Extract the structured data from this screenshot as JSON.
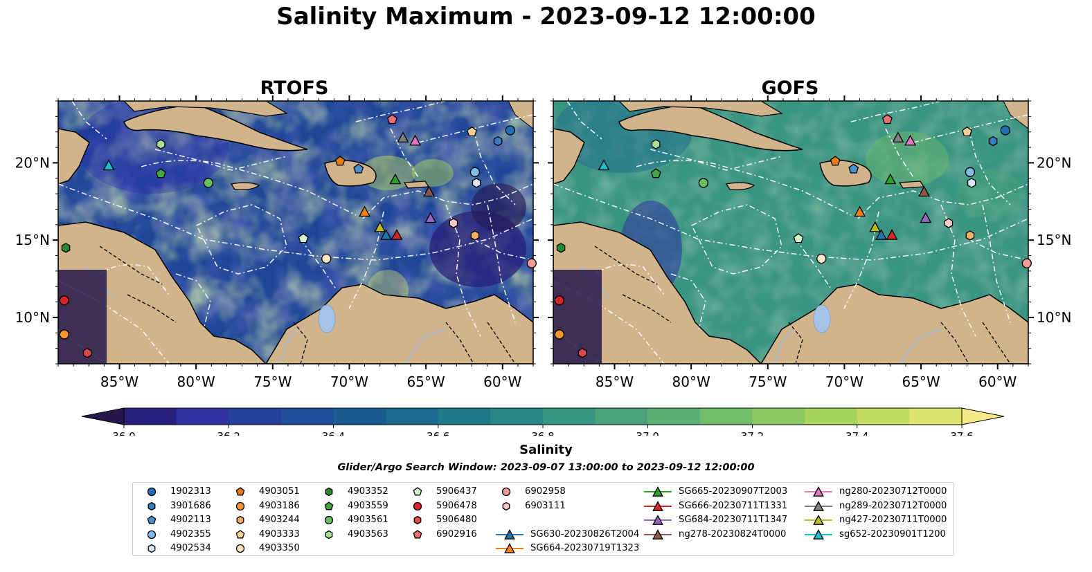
{
  "figure": {
    "title": "Salinity Maximum - 2023-09-12 12:00:00",
    "panels": [
      "RTOFS",
      "GOFS"
    ],
    "lon_ticks": [
      "85°W",
      "80°W",
      "75°W",
      "70°W",
      "65°W",
      "60°W"
    ],
    "lat_ticks": [
      "20°N",
      "15°N",
      "10°N"
    ],
    "search_window": "Glider/Argo Search Window: 2023-09-07 13:00:00 to 2023-09-12 12:00:00"
  },
  "colorbar": {
    "label": "Salinity",
    "ticks": [
      "36.0",
      "36.2",
      "36.4",
      "36.6",
      "36.8",
      "37.0",
      "37.2",
      "37.4",
      "37.6"
    ],
    "colormap": [
      "#24184c",
      "#28207a",
      "#2e32a0",
      "#263f9c",
      "#1f4e96",
      "#1b5c90",
      "#1b6a8d",
      "#22788a",
      "#2c8787",
      "#3a9482",
      "#4aa27b",
      "#5db073",
      "#72bd6a",
      "#8bc862",
      "#a6d35c",
      "#c3dd60",
      "#dee56e",
      "#f4eb86"
    ]
  },
  "legend": {
    "argo": [
      {
        "label": "1902313",
        "marker": "circle",
        "color": "#2070b4"
      },
      {
        "label": "3901686",
        "marker": "hexagon",
        "color": "#3a7cc2"
      },
      {
        "label": "4902113",
        "marker": "pentagon",
        "color": "#4a90d0"
      },
      {
        "label": "4902355",
        "marker": "circle",
        "color": "#84b8e8"
      },
      {
        "label": "4902534",
        "marker": "hexagon",
        "color": "#d7e8f9"
      },
      {
        "label": "4903051",
        "marker": "pentagon",
        "color": "#e87a12"
      },
      {
        "label": "4903186",
        "marker": "circle",
        "color": "#f5952c"
      },
      {
        "label": "4903244",
        "marker": "hexagon",
        "color": "#f7b066"
      },
      {
        "label": "4903333",
        "marker": "pentagon",
        "color": "#fbd09a"
      },
      {
        "label": "4903350",
        "marker": "circle",
        "color": "#fde6c8"
      },
      {
        "label": "4903352",
        "marker": "hexagon",
        "color": "#2a8a2a"
      },
      {
        "label": "4903559",
        "marker": "pentagon",
        "color": "#44a642"
      },
      {
        "label": "4903561",
        "marker": "circle",
        "color": "#66c060"
      },
      {
        "label": "4903563",
        "marker": "hexagon",
        "color": "#a8e09a"
      },
      {
        "label": "5906437",
        "marker": "pentagon",
        "color": "#d4f4cc"
      },
      {
        "label": "5906478",
        "marker": "circle",
        "color": "#d7262a"
      },
      {
        "label": "5906480",
        "marker": "hexagon",
        "color": "#e0474a"
      },
      {
        "label": "6902916",
        "marker": "pentagon",
        "color": "#ec7072"
      },
      {
        "label": "6902958",
        "marker": "circle",
        "color": "#f59a98"
      },
      {
        "label": "6903111",
        "marker": "hexagon",
        "color": "#fbc8c6"
      }
    ],
    "gliders": [
      {
        "label": "SG630-20230826T2004",
        "color": "#1f77b4"
      },
      {
        "label": "SG664-20230719T1323",
        "color": "#ff7f0e"
      },
      {
        "label": "SG665-20230907T2003",
        "color": "#2ca02c"
      },
      {
        "label": "SG666-20230711T1331",
        "color": "#d62728"
      },
      {
        "label": "SG684-20230711T1347",
        "color": "#9467bd"
      },
      {
        "label": "ng278-20230824T0000",
        "color": "#8c564b"
      },
      {
        "label": "ng280-20230712T0000",
        "color": "#e377c2"
      },
      {
        "label": "ng289-20230712T0000",
        "color": "#7f7f7f"
      },
      {
        "label": "ng427-20230711T0000",
        "color": "#bcbd22"
      },
      {
        "label": "sg652-20230901T1200",
        "color": "#17becf"
      }
    ]
  },
  "chart_data": [
    {
      "type": "heatmap",
      "title": "RTOFS",
      "xlim": [
        -89,
        -58
      ],
      "ylim": [
        7,
        24
      ],
      "x_ticks": [
        -85,
        -80,
        -75,
        -70,
        -65,
        -60
      ],
      "y_ticks": [
        20,
        15,
        10
      ],
      "colorbar_range": [
        36.0,
        37.6
      ],
      "value_label": "Salinity",
      "argo_floats": [
        {
          "id": "1902313",
          "lon": -59.5,
          "lat": 22.1
        },
        {
          "id": "3901686",
          "lon": -60.3,
          "lat": 21.4
        },
        {
          "id": "4902113",
          "lon": -69.4,
          "lat": 19.6
        },
        {
          "id": "4902355",
          "lon": -61.8,
          "lat": 19.4
        },
        {
          "id": "4902534",
          "lon": -61.7,
          "lat": 18.7
        },
        {
          "id": "4903051",
          "lon": -70.6,
          "lat": 20.1
        },
        {
          "id": "4903186",
          "lon": -88.6,
          "lat": 8.9
        },
        {
          "id": "4903244",
          "lon": -61.8,
          "lat": 15.3
        },
        {
          "id": "4903333",
          "lon": -62.0,
          "lat": 22.0
        },
        {
          "id": "4903350",
          "lon": -71.5,
          "lat": 13.8
        },
        {
          "id": "4903352",
          "lon": -88.5,
          "lat": 14.5
        },
        {
          "id": "4903559",
          "lon": -82.3,
          "lat": 19.3
        },
        {
          "id": "4903561",
          "lon": -79.2,
          "lat": 18.7
        },
        {
          "id": "4903563",
          "lon": -82.3,
          "lat": 21.2
        },
        {
          "id": "5906437",
          "lon": -73.0,
          "lat": 15.1
        },
        {
          "id": "5906478",
          "lon": -88.6,
          "lat": 11.1
        },
        {
          "id": "5906480",
          "lon": -87.1,
          "lat": 7.7
        },
        {
          "id": "6902916",
          "lon": -67.2,
          "lat": 22.8
        },
        {
          "id": "6902958",
          "lon": -58.1,
          "lat": 13.5
        },
        {
          "id": "6903111",
          "lon": -63.2,
          "lat": 16.1
        }
      ],
      "glider_positions": [
        {
          "id": "SG630-20230826T2004",
          "lon": -67.6,
          "lat": 15.3
        },
        {
          "id": "SG664-20230719T1323",
          "lon": -69.0,
          "lat": 16.8
        },
        {
          "id": "SG665-20230907T2003",
          "lon": -67.0,
          "lat": 18.9
        },
        {
          "id": "SG666-20230711T1331",
          "lon": -66.9,
          "lat": 15.3
        },
        {
          "id": "SG684-20230711T1347",
          "lon": -64.7,
          "lat": 16.4
        },
        {
          "id": "ng278-20230824T0000",
          "lon": -64.8,
          "lat": 18.1
        },
        {
          "id": "ng280-20230712T0000",
          "lon": -65.7,
          "lat": 21.4
        },
        {
          "id": "ng289-20230712T0000",
          "lon": -66.5,
          "lat": 21.6
        },
        {
          "id": "ng427-20230711T0000",
          "lon": -68.0,
          "lat": 15.8
        },
        {
          "id": "sg652-20230901T1200",
          "lon": -85.7,
          "lat": 19.8
        }
      ]
    },
    {
      "type": "heatmap",
      "title": "GOFS",
      "xlim": [
        -89,
        -58
      ],
      "ylim": [
        7,
        24
      ],
      "x_ticks": [
        -85,
        -80,
        -75,
        -70,
        -65,
        -60
      ],
      "y_ticks": [
        20,
        15,
        10
      ],
      "colorbar_range": [
        36.0,
        37.6
      ],
      "value_label": "Salinity",
      "same_observations_as": "RTOFS"
    }
  ]
}
